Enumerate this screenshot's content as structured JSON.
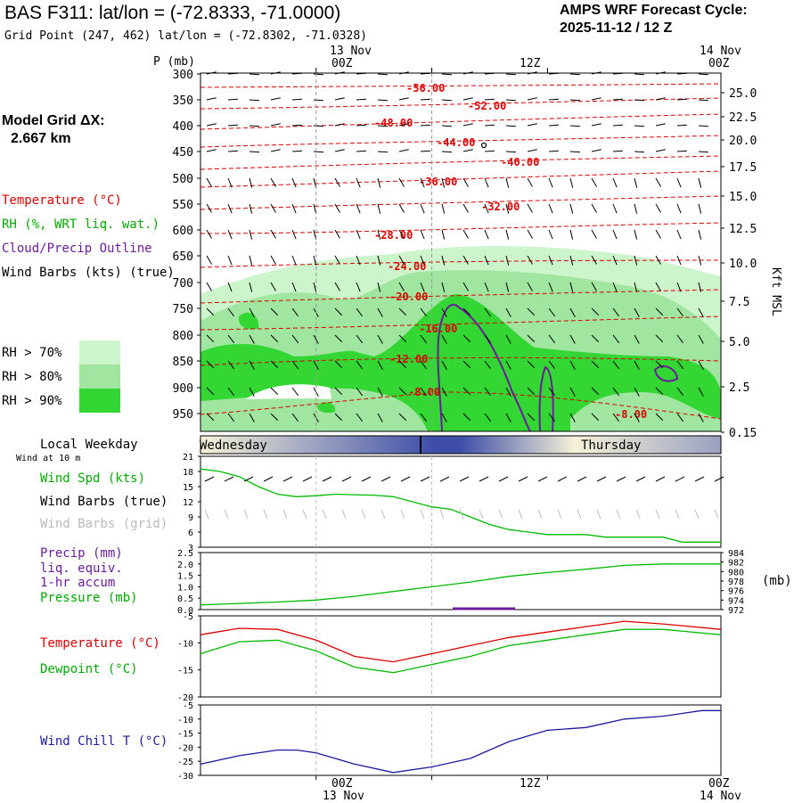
{
  "header": {
    "title": "BAS F311:  lat/lon = (-72.8333, -71.0000)",
    "subtitle": "Grid Point (247, 462) lat/lon = (-72.8302, -71.0328)",
    "cycle_label": "AMPS WRF Forecast Cycle:",
    "cycle_value": "2025-11-12 / 12  Z",
    "model_grid_label": "Model Grid ΔX:",
    "model_grid_value": "2.667 km"
  },
  "legend": {
    "temperature": "Temperature (°C)",
    "rh": "RH (%, WRT liq. wat.)",
    "cloud": "Cloud/Precip Outline",
    "wind_barbs": "Wind Barbs (kts) (true)",
    "rh70": "RH > 70%",
    "rh80": "RH > 80%",
    "rh90": "RH > 90%",
    "pressure_axis_label": "P (mb)",
    "right_axis_label": "Kft MSL"
  },
  "time_axis": {
    "top_dates": [
      "13 Nov",
      "14 Nov"
    ],
    "ticks": [
      "00Z",
      "12Z",
      "00Z"
    ],
    "bottom_dates": [
      "13 Nov",
      "14 Nov"
    ]
  },
  "weekday": {
    "label": "Local Weekday",
    "day1": "Wednesday",
    "day2": "Thursday",
    "wind_at": "Wind at 10 m"
  },
  "panel_labels": {
    "wind_spd": "Wind Spd (kts)",
    "wind_barbs_true": "Wind Barbs (true)",
    "wind_barbs_grid": "Wind Barbs (grid)",
    "precip": "Precip (mm)",
    "liq": "liq. equiv.",
    "accum": "1-hr accum",
    "pressure": "Pressure (mb)",
    "pressure_unit": "(mb)",
    "temperature": "Temperature (°C)",
    "dewpoint": "Dewpoint (°C)",
    "windchill": "Wind Chill T (°C)"
  },
  "colors": {
    "temperature": "#dd0000",
    "dewpoint": "#00bb00",
    "windchill": "#1a1aa0",
    "precip": "#6a1c9a",
    "rh70": "#ccf5cc",
    "rh80": "#a0e6a0",
    "rh90": "#33d633"
  },
  "chart_data": [
    {
      "type": "area",
      "name": "cross-section",
      "x_range_hours": [
        -12,
        42
      ],
      "pressure_ticks": [
        "300",
        "350",
        "400",
        "450",
        "500",
        "550",
        "600",
        "650",
        "700",
        "750",
        "800",
        "850",
        "900",
        "950"
      ],
      "height_ticks": [
        "25.0",
        "22.5",
        "20.0",
        "17.5",
        "15.0",
        "12.5",
        "10.0",
        "7.5",
        "5.0",
        "2.5",
        "0.15"
      ],
      "temperature_contour_labels": [
        "-56.00",
        "-52.00",
        "-48.00",
        "-44.00",
        "-40.00",
        "-36.00",
        "-32.00",
        "-28.00",
        "-24.00",
        "-20.00",
        "-16.00",
        "-12.00",
        "-8.00",
        "-8.00"
      ]
    },
    {
      "type": "line",
      "name": "wind_speed",
      "ylim": [
        3,
        21
      ],
      "y_ticks": [
        "21",
        "18",
        "15",
        "12",
        "9",
        "6",
        "3"
      ],
      "x_hours": [
        -12,
        -10,
        -8,
        -6,
        -4,
        -2,
        0,
        2,
        4,
        6,
        8,
        10,
        12,
        14,
        16,
        18,
        20,
        22,
        24,
        26,
        28,
        30,
        32,
        34,
        36,
        38,
        40,
        42
      ],
      "values": [
        18.5,
        18.0,
        17.0,
        15.0,
        13.5,
        13.0,
        13.2,
        13.5,
        13.4,
        13.3,
        13.0,
        12.0,
        11.0,
        10.5,
        9.0,
        7.5,
        6.5,
        6.0,
        5.5,
        5.5,
        5.5,
        5.0,
        5.0,
        5.0,
        5.0,
        4.0,
        4.0,
        4.0
      ]
    },
    {
      "type": "line",
      "name": "precip_pressure",
      "precip_ylim": [
        0,
        2.5
      ],
      "precip_ticks": [
        "2.5",
        "2.0",
        "1.5",
        "1.0",
        "0.5",
        "0.0"
      ],
      "pressure_ylim": [
        972,
        984
      ],
      "pressure_ticks": [
        "984",
        "982",
        "980",
        "978",
        "976",
        "974",
        "972"
      ],
      "x_hours": [
        -12,
        -8,
        -4,
        0,
        4,
        8,
        12,
        16,
        20,
        24,
        28,
        32,
        36,
        42
      ],
      "pressure": [
        973.0,
        973.3,
        973.6,
        974.0,
        974.8,
        975.8,
        976.8,
        977.8,
        979.0,
        979.8,
        980.5,
        981.3,
        981.6,
        981.6
      ],
      "precip": [
        0,
        0,
        0,
        0,
        0,
        0,
        0,
        0,
        0,
        0,
        0,
        0,
        0,
        0
      ]
    },
    {
      "type": "line",
      "name": "temperature_dewpoint",
      "ylim": [
        -20,
        -5
      ],
      "y_ticks": [
        "-5",
        "-10",
        "-15",
        "-20"
      ],
      "x_hours": [
        -12,
        -8,
        -4,
        0,
        4,
        8,
        12,
        16,
        20,
        24,
        28,
        32,
        36,
        42
      ],
      "temperature": [
        -8.5,
        -7.3,
        -7.5,
        -9.5,
        -12.5,
        -13.5,
        -12.0,
        -10.5,
        -9.0,
        -8.0,
        -7.0,
        -6.0,
        -6.5,
        -7.5
      ],
      "dewpoint": [
        -12.0,
        -9.8,
        -9.5,
        -11.5,
        -14.5,
        -15.5,
        -14.0,
        -12.5,
        -10.5,
        -9.5,
        -8.5,
        -7.5,
        -7.5,
        -8.5
      ]
    },
    {
      "type": "line",
      "name": "wind_chill",
      "ylim": [
        -30,
        -5
      ],
      "y_ticks": [
        "-5",
        "-10",
        "-15",
        "-20",
        "-25",
        "-30"
      ],
      "x_hours": [
        -12,
        -8,
        -4,
        -2,
        0,
        4,
        8,
        12,
        16,
        20,
        24,
        28,
        32,
        36,
        40,
        42
      ],
      "values": [
        -26,
        -23,
        -21,
        -21,
        -22,
        -26,
        -29,
        -27,
        -24,
        -18,
        -14,
        -13,
        -10,
        -9,
        -7,
        -7
      ]
    }
  ]
}
